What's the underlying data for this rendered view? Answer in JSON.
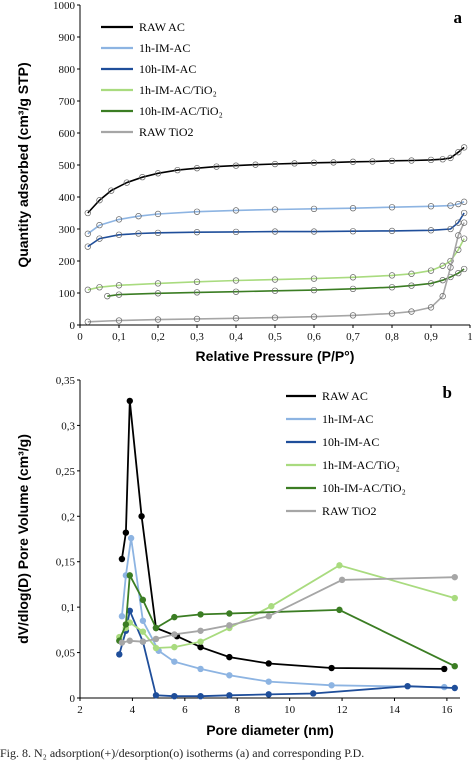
{
  "caption": "Fig. 8. N₂ adsorption(+)/desorption(o) isotherms (a) and corresponding P.D.",
  "chart_data": [
    {
      "panel": "a",
      "type": "line",
      "xlabel": "Relative Pressure (P/P°)",
      "ylabel": "Quantity adsorbed (cm³/g STP)",
      "xlim": [
        0,
        1
      ],
      "ylim": [
        0,
        1000
      ],
      "xticks": [
        "0",
        "0,1",
        "0,2",
        "0,3",
        "0,4",
        "0,5",
        "0,6",
        "0,7",
        "0,8",
        "0,9",
        "1"
      ],
      "yticks": [
        "0",
        "100",
        "200",
        "300",
        "400",
        "500",
        "600",
        "700",
        "800",
        "900",
        "1000"
      ],
      "legend_position": "top-left",
      "series": [
        {
          "name": "RAW AC",
          "color": "#000000",
          "x": [
            0.02,
            0.05,
            0.08,
            0.12,
            0.16,
            0.2,
            0.25,
            0.3,
            0.35,
            0.4,
            0.45,
            0.5,
            0.55,
            0.6,
            0.65,
            0.7,
            0.75,
            0.8,
            0.85,
            0.9,
            0.93,
            0.95,
            0.97,
            0.985
          ],
          "y": [
            350,
            390,
            420,
            445,
            462,
            474,
            484,
            490,
            495,
            498,
            501,
            503,
            505,
            507,
            508,
            510,
            511,
            513,
            514,
            516,
            518,
            522,
            540,
            555
          ]
        },
        {
          "name": "1h-IM-AC",
          "color": "#8DB4E2",
          "x": [
            0.02,
            0.05,
            0.1,
            0.15,
            0.2,
            0.3,
            0.4,
            0.5,
            0.6,
            0.7,
            0.8,
            0.9,
            0.95,
            0.97,
            0.985
          ],
          "y": [
            285,
            312,
            330,
            340,
            347,
            354,
            358,
            361,
            363,
            365,
            368,
            371,
            373,
            378,
            385
          ]
        },
        {
          "name": "10h-IM-AC",
          "color": "#1F4E9A",
          "x": [
            0.02,
            0.05,
            0.1,
            0.15,
            0.2,
            0.3,
            0.4,
            0.5,
            0.6,
            0.7,
            0.8,
            0.9,
            0.95,
            0.97,
            0.985
          ],
          "y": [
            245,
            270,
            282,
            286,
            288,
            290,
            291,
            292,
            292,
            293,
            294,
            296,
            300,
            320,
            350
          ]
        },
        {
          "name": "1h-IM-AC/TiO₂",
          "color": "#A9DB7F",
          "x": [
            0.02,
            0.05,
            0.1,
            0.2,
            0.3,
            0.4,
            0.5,
            0.6,
            0.7,
            0.8,
            0.85,
            0.9,
            0.93,
            0.95,
            0.97,
            0.985
          ],
          "y": [
            110,
            118,
            124,
            130,
            135,
            139,
            142,
            145,
            149,
            155,
            160,
            170,
            185,
            200,
            235,
            270
          ]
        },
        {
          "name": "10h-IM-AC/TiO₂",
          "color": "#3B7D23",
          "x": [
            0.07,
            0.1,
            0.2,
            0.3,
            0.4,
            0.5,
            0.6,
            0.7,
            0.8,
            0.85,
            0.9,
            0.93,
            0.95,
            0.97,
            0.985
          ],
          "y": [
            90,
            95,
            99,
            102,
            104,
            107,
            109,
            113,
            118,
            123,
            130,
            140,
            150,
            162,
            175
          ]
        },
        {
          "name": "RAW TiO2",
          "color": "#A6A6A6",
          "x": [
            0.02,
            0.1,
            0.2,
            0.3,
            0.4,
            0.5,
            0.6,
            0.7,
            0.8,
            0.85,
            0.9,
            0.93,
            0.95,
            0.97,
            0.985
          ],
          "y": [
            10,
            14,
            17,
            19,
            21,
            23,
            26,
            30,
            36,
            42,
            55,
            90,
            180,
            280,
            320
          ]
        }
      ]
    },
    {
      "panel": "b",
      "type": "line",
      "xlabel": "Pore diameter (nm)",
      "ylabel": "dV/dlog(D) Pore Volume (cm³/g)",
      "xlim": [
        2,
        16.5
      ],
      "ylim": [
        0,
        0.35
      ],
      "xticks": [
        "2",
        "4",
        "6",
        "8",
        "10",
        "12",
        "14",
        "16"
      ],
      "yticks": [
        "0",
        "0,05",
        "0,1",
        "0,15",
        "0,2",
        "0,25",
        "0,3",
        "0,35"
      ],
      "legend_position": "top-right",
      "series": [
        {
          "name": "RAW AC",
          "color": "#000000",
          "x": [
            3.6,
            3.75,
            3.9,
            4.35,
            4.9,
            5.7,
            6.6,
            7.7,
            9.2,
            11.6,
            15.9
          ],
          "y": [
            0.153,
            0.182,
            0.327,
            0.2,
            0.077,
            0.068,
            0.056,
            0.045,
            0.038,
            0.033,
            0.032
          ]
        },
        {
          "name": "1h-IM-AC",
          "color": "#8DB4E2",
          "x": [
            3.6,
            3.75,
            3.95,
            4.4,
            5.0,
            5.6,
            6.6,
            7.7,
            9.2,
            11.6,
            15.9
          ],
          "y": [
            0.09,
            0.135,
            0.176,
            0.085,
            0.052,
            0.04,
            0.032,
            0.025,
            0.018,
            0.014,
            0.012
          ]
        },
        {
          "name": "10h-IM-AC",
          "color": "#1F4E9A",
          "x": [
            3.5,
            3.75,
            3.9,
            4.4,
            4.9,
            5.6,
            6.6,
            7.7,
            9.2,
            10.9,
            14.5,
            16.3
          ],
          "y": [
            0.048,
            0.074,
            0.096,
            0.062,
            0.003,
            0.002,
            0.002,
            0.003,
            0.004,
            0.005,
            0.013,
            0.011
          ]
        },
        {
          "name": "1h-IM-AC/TiO₂",
          "color": "#A9DB7F",
          "x": [
            3.5,
            3.75,
            3.9,
            4.4,
            4.9,
            5.6,
            6.6,
            7.7,
            9.3,
            11.9,
            16.3
          ],
          "y": [
            0.067,
            0.077,
            0.083,
            0.073,
            0.055,
            0.056,
            0.062,
            0.077,
            0.101,
            0.146,
            0.11
          ]
        },
        {
          "name": "10h-IM-AC/TiO₂",
          "color": "#3B7D23",
          "x": [
            3.5,
            3.75,
            3.9,
            4.4,
            4.9,
            5.6,
            6.6,
            7.7,
            11.9,
            16.3
          ],
          "y": [
            0.063,
            0.081,
            0.135,
            0.108,
            0.077,
            0.089,
            0.092,
            0.093,
            0.097,
            0.035
          ]
        },
        {
          "name": "RAW TiO2",
          "color": "#A6A6A6",
          "x": [
            3.6,
            3.9,
            4.4,
            4.9,
            5.6,
            6.6,
            7.7,
            9.2,
            12.0,
            16.3
          ],
          "y": [
            0.061,
            0.063,
            0.062,
            0.065,
            0.07,
            0.074,
            0.08,
            0.09,
            0.13,
            0.133
          ]
        }
      ]
    }
  ]
}
